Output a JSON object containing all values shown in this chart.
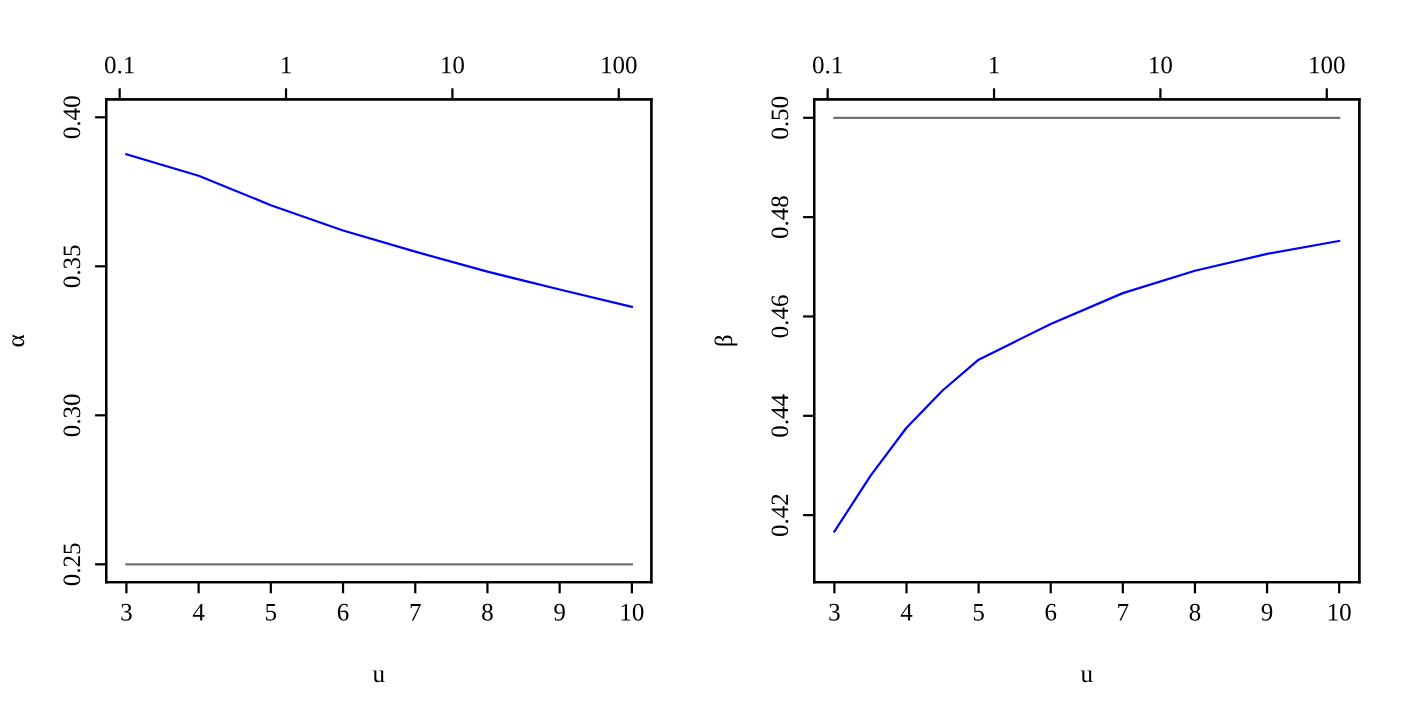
{
  "chart_data": [
    {
      "type": "line",
      "xlabel": "u",
      "ylabel": "α",
      "x": [
        3,
        4,
        5,
        6,
        7,
        8,
        9,
        10
      ],
      "xlim": [
        2.72,
        10.27
      ],
      "xticks": [
        3,
        4,
        5,
        6,
        7,
        8,
        9,
        10
      ],
      "ylim": [
        0.244,
        0.406
      ],
      "yticks": [
        {
          "value": 0.25,
          "label": "0.25"
        },
        {
          "value": 0.3,
          "label": "0.30"
        },
        {
          "value": 0.35,
          "label": "0.35"
        },
        {
          "value": 0.4,
          "label": "0.40"
        }
      ],
      "x2lim": [
        0.083,
        157
      ],
      "x2ticks": [
        0.1,
        1,
        10,
        100
      ],
      "log": "x2",
      "grid": false,
      "series": [
        {
          "color": "#0000ff",
          "values": [
            0.3876,
            0.3804,
            0.3705,
            0.362,
            0.3549,
            0.3482,
            0.3422,
            0.3364
          ]
        },
        {
          "color": "#707070",
          "values": [
            0.25,
            0.25,
            0.25,
            0.25,
            0.25,
            0.25,
            0.25,
            0.25
          ]
        }
      ]
    },
    {
      "type": "line",
      "xlabel": "u",
      "ylabel": "β",
      "x": [
        3,
        3.5,
        4,
        4.5,
        5,
        6,
        7,
        8,
        9,
        10
      ],
      "xlim": [
        2.72,
        10.28
      ],
      "xticks": [
        3,
        4,
        5,
        6,
        7,
        8,
        9,
        10
      ],
      "ylim": [
        0.4065,
        0.5037
      ],
      "yticks": [
        {
          "value": 0.42,
          "label": "0.42"
        },
        {
          "value": 0.44,
          "label": "0.44"
        },
        {
          "value": 0.46,
          "label": "0.46"
        },
        {
          "value": 0.48,
          "label": "0.48"
        },
        {
          "value": 0.5,
          "label": "0.50"
        }
      ],
      "x2lim": [
        0.083,
        157
      ],
      "x2ticks": [
        0.1,
        1,
        10,
        100
      ],
      "log": "x2",
      "grid": false,
      "series": [
        {
          "color": "#0000ff",
          "values": [
            0.4167,
            0.4279,
            0.4376,
            0.4451,
            0.4513,
            0.4585,
            0.4647,
            0.4692,
            0.4726,
            0.4752
          ]
        },
        {
          "color": "#707070",
          "values": [
            0.5,
            0.5,
            0.5,
            0.5,
            0.5,
            0.5,
            0.5,
            0.5,
            0.5,
            0.5
          ]
        }
      ]
    }
  ]
}
